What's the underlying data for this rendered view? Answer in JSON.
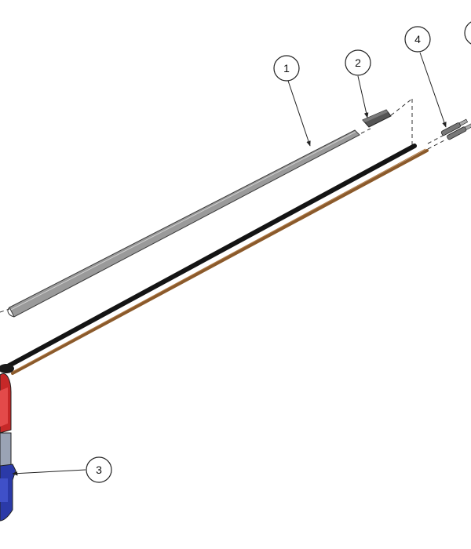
{
  "drawing": {
    "balloons": [
      {
        "label": "1",
        "part": "flat-strip"
      },
      {
        "label": "2",
        "part": "end-cap"
      },
      {
        "label": "3",
        "part": "motor-housing"
      },
      {
        "label": "4",
        "part": "connector-pins"
      },
      {
        "label": "",
        "part": "partial-balloon"
      }
    ]
  },
  "colors": {
    "strip_fill": "#9a9a9a",
    "strip_edge": "#3a3a3a",
    "end_cap": "#555555",
    "cable_black": "#141414",
    "cable_brown": "#8b5a2b",
    "housing_red": "#c62828",
    "housing_blue": "#2b3aa8",
    "housing_grey": "#9aa3b5",
    "leader": "#222222",
    "dashed_line": "#333333"
  }
}
